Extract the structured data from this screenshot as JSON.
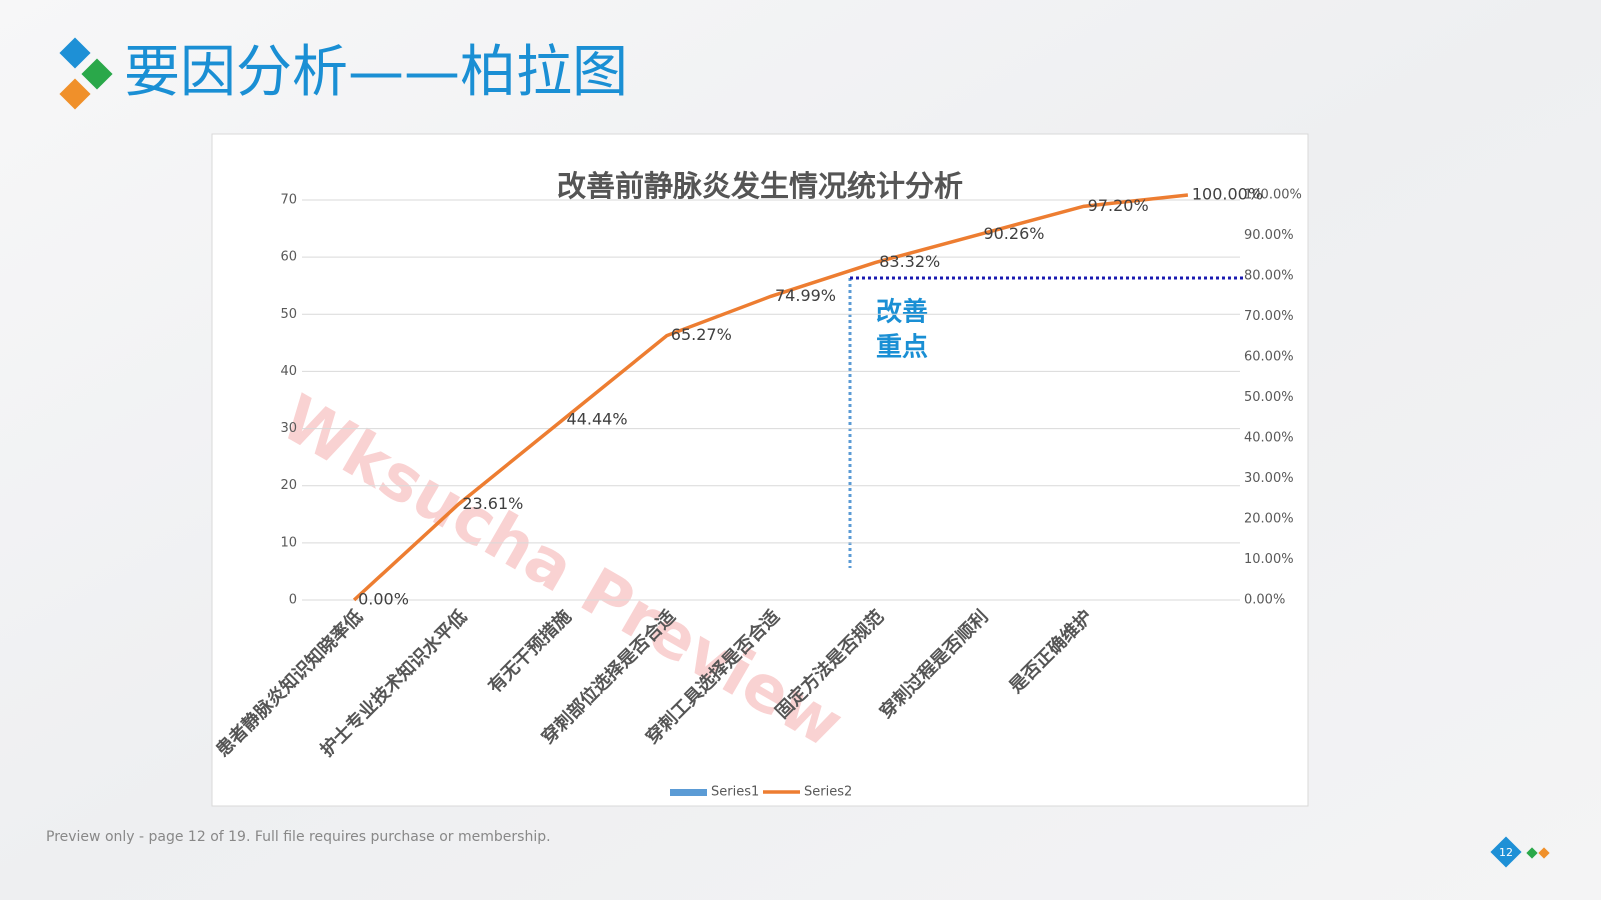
{
  "slide_title": "要因分析——柏拉图",
  "footer": "Preview only - page 12 of 19. Full file requires purchase or membership.",
  "page_number": "12",
  "watermark": "Wksucha Preview",
  "chart_data": {
    "type": "line",
    "title": "改善前静脉炎发生情况统计分析",
    "categories": [
      "患者静脉炎知识知晓率低",
      "护士专业技术知识水平低",
      "有无干预措施",
      "穿刺部位选择是否合适",
      "穿刺工具选择是否合适",
      "固定方法是否规范",
      "穿刺过程是否顺利",
      "是否正确维护",
      null
    ],
    "series": [
      {
        "name": "Series1",
        "color": "#5b9bd5",
        "values": [
          null,
          null,
          null,
          null,
          null,
          null,
          null,
          null,
          null
        ]
      },
      {
        "name": "Series2",
        "color": "#ed7d31",
        "axis": "y2",
        "values": [
          0,
          23.61,
          44.44,
          65.27,
          74.99,
          83.32,
          90.26,
          97.2,
          100
        ],
        "value_labels": [
          "0.00%",
          "23.61%",
          "44.44%",
          "65.27%",
          "74.99%",
          "83.32%",
          "90.26%",
          "97.20%",
          "100.00%"
        ]
      }
    ],
    "ylim": [
      0,
      70
    ],
    "yticks": [
      0,
      10,
      20,
      30,
      40,
      50,
      60,
      70
    ],
    "y2lim": [
      0,
      100
    ],
    "y2ticks": [
      {
        "value": 0,
        "label": "0.00%"
      },
      {
        "value": 10,
        "label": "10.00%"
      },
      {
        "value": 20,
        "label": "20.00%"
      },
      {
        "value": 30,
        "label": "30.00%"
      },
      {
        "value": 40,
        "label": "40.00%"
      },
      {
        "value": 50,
        "label": "50.00%"
      },
      {
        "value": 60,
        "label": "60.00%"
      },
      {
        "value": 70,
        "label": "70.00%"
      },
      {
        "value": 80,
        "label": "80.00%"
      },
      {
        "value": 90,
        "label": "90.00%"
      },
      {
        "value": 100,
        "label": "100.00%"
      }
    ],
    "grid": true,
    "legend": "bottom",
    "annotations": [
      "改善",
      "重点"
    ]
  }
}
